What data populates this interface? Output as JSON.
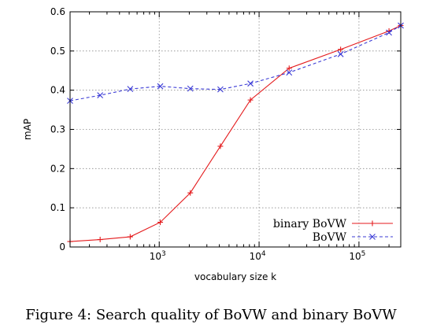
{
  "caption": "Figure 4: Search quality of BoVW and binary BoVW",
  "chart_data": {
    "type": "line",
    "xlabel": "vocabulary size k",
    "ylabel": "mAP",
    "xscale": "log",
    "xlim": [
      128,
      262144
    ],
    "ylim": [
      0,
      0.6
    ],
    "yticks": [
      0,
      0.1,
      0.2,
      0.3,
      0.4,
      0.5,
      0.6
    ],
    "ytick_labels": [
      "0",
      "0.1",
      "0.2",
      "0.3",
      "0.4",
      "0.5",
      "0.6"
    ],
    "xticks": [
      {
        "value": 1000,
        "base": "10",
        "exp": "3"
      },
      {
        "value": 10000,
        "base": "10",
        "exp": "4"
      },
      {
        "value": 100000,
        "base": "10",
        "exp": "5"
      }
    ],
    "grid": true,
    "legend_position": "bottom-right",
    "series": [
      {
        "name": "binary BoVW",
        "color": "#e41a1c",
        "marker": "plus",
        "linestyle": "solid",
        "x": [
          128,
          256,
          512,
          1024,
          2048,
          4096,
          8192,
          20000,
          65536,
          200000,
          262144
        ],
        "y": [
          0.014,
          0.019,
          0.026,
          0.063,
          0.138,
          0.257,
          0.375,
          0.456,
          0.504,
          0.551,
          0.565
        ]
      },
      {
        "name": "BoVW",
        "color": "#3b3bd6",
        "marker": "x",
        "linestyle": "dashed",
        "x": [
          128,
          256,
          512,
          1024,
          2048,
          4096,
          8192,
          20000,
          65536,
          200000,
          262144
        ],
        "y": [
          0.373,
          0.387,
          0.403,
          0.41,
          0.404,
          0.402,
          0.417,
          0.445,
          0.492,
          0.547,
          0.565
        ]
      }
    ]
  }
}
